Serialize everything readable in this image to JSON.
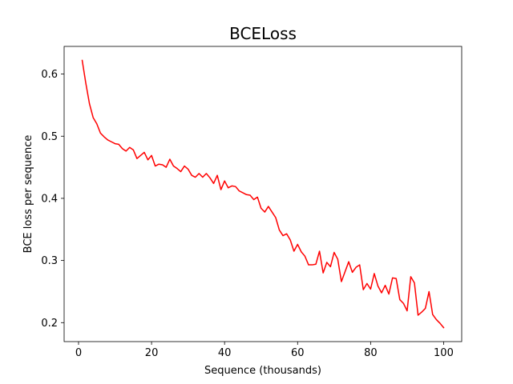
{
  "chart_data": {
    "type": "line",
    "title": "BCELoss",
    "xlabel": "Sequence (thousands)",
    "ylabel": "BCE loss per sequence",
    "xlim": [
      -3.95,
      104.95
    ],
    "ylim": [
      0.1695,
      0.6445
    ],
    "xticks": [
      0,
      20,
      40,
      60,
      80,
      100
    ],
    "xtick_labels": [
      "0",
      "20",
      "40",
      "60",
      "80",
      "100"
    ],
    "yticks": [
      0.2,
      0.3,
      0.4,
      0.5,
      0.6
    ],
    "ytick_labels": [
      "0.2",
      "0.3",
      "0.4",
      "0.5",
      "0.6"
    ],
    "grid": false,
    "series": [
      {
        "color": "#ff0000",
        "x": [
          1,
          2,
          3,
          4,
          5,
          6,
          7,
          8,
          9,
          10,
          11,
          12,
          13,
          14,
          15,
          16,
          17,
          18,
          19,
          20,
          21,
          22,
          23,
          24,
          25,
          26,
          27,
          28,
          29,
          30,
          31,
          32,
          33,
          34,
          35,
          36,
          37,
          38,
          39,
          40,
          41,
          42,
          43,
          44,
          45,
          46,
          47,
          48,
          49,
          50,
          51,
          52,
          53,
          54,
          55,
          56,
          57,
          58,
          59,
          60,
          61,
          62,
          63,
          64,
          65,
          66,
          67,
          68,
          69,
          70,
          71,
          72,
          73,
          74,
          75,
          76,
          77,
          78,
          79,
          80,
          81,
          82,
          83,
          84,
          85,
          86,
          87,
          88,
          89,
          90,
          91,
          92,
          93,
          94,
          95,
          96,
          97,
          98,
          99,
          100
        ],
        "y": [
          0.622,
          0.585,
          0.552,
          0.53,
          0.52,
          0.505,
          0.499,
          0.494,
          0.491,
          0.488,
          0.487,
          0.48,
          0.476,
          0.482,
          0.478,
          0.464,
          0.469,
          0.474,
          0.462,
          0.469,
          0.452,
          0.455,
          0.454,
          0.45,
          0.463,
          0.452,
          0.448,
          0.443,
          0.452,
          0.447,
          0.437,
          0.434,
          0.44,
          0.434,
          0.44,
          0.433,
          0.424,
          0.437,
          0.414,
          0.428,
          0.417,
          0.42,
          0.419,
          0.412,
          0.409,
          0.406,
          0.405,
          0.398,
          0.402,
          0.384,
          0.378,
          0.387,
          0.378,
          0.369,
          0.349,
          0.34,
          0.343,
          0.333,
          0.315,
          0.326,
          0.314,
          0.307,
          0.293,
          0.293,
          0.294,
          0.315,
          0.28,
          0.297,
          0.29,
          0.313,
          0.302,
          0.266,
          0.282,
          0.298,
          0.281,
          0.289,
          0.293,
          0.253,
          0.263,
          0.254,
          0.279,
          0.259,
          0.248,
          0.26,
          0.246,
          0.272,
          0.271,
          0.237,
          0.231,
          0.219,
          0.274,
          0.264,
          0.212,
          0.217,
          0.223,
          0.25,
          0.213,
          0.205,
          0.199,
          0.192
        ]
      }
    ]
  }
}
